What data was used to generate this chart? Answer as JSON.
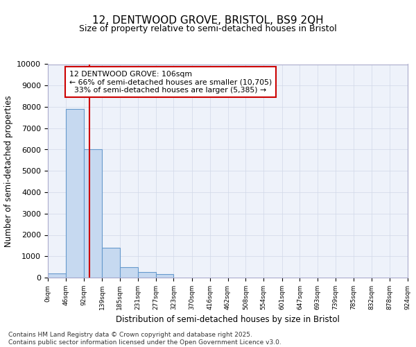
{
  "title_line1": "12, DENTWOOD GROVE, BRISTOL, BS9 2QH",
  "title_line2": "Size of property relative to semi-detached houses in Bristol",
  "xlabel": "Distribution of semi-detached houses by size in Bristol",
  "ylabel": "Number of semi-detached properties",
  "property_size": 106,
  "property_label": "12 DENTWOOD GROVE: 106sqm",
  "pct_smaller": 66,
  "pct_larger": 33,
  "count_smaller": 10705,
  "count_larger": 5385,
  "bin_edges": [
    0,
    46,
    92,
    139,
    185,
    231,
    277,
    323,
    370,
    416,
    462,
    508,
    554,
    601,
    647,
    693,
    739,
    785,
    832,
    878,
    924
  ],
  "bar_heights": [
    200,
    7900,
    6000,
    1400,
    500,
    250,
    150,
    0,
    0,
    0,
    0,
    0,
    0,
    0,
    0,
    0,
    0,
    0,
    0,
    0
  ],
  "bar_color": "#c6d9f0",
  "bar_edge_color": "#6699cc",
  "red_line_color": "#cc0000",
  "annotation_box_edge": "#cc0000",
  "grid_color": "#d0d8e8",
  "bg_color": "#eef2fa",
  "footer_text": "Contains HM Land Registry data © Crown copyright and database right 2025.\nContains public sector information licensed under the Open Government Licence v3.0.",
  "ylim": [
    0,
    10000
  ],
  "yticks": [
    0,
    1000,
    2000,
    3000,
    4000,
    5000,
    6000,
    7000,
    8000,
    9000,
    10000
  ]
}
